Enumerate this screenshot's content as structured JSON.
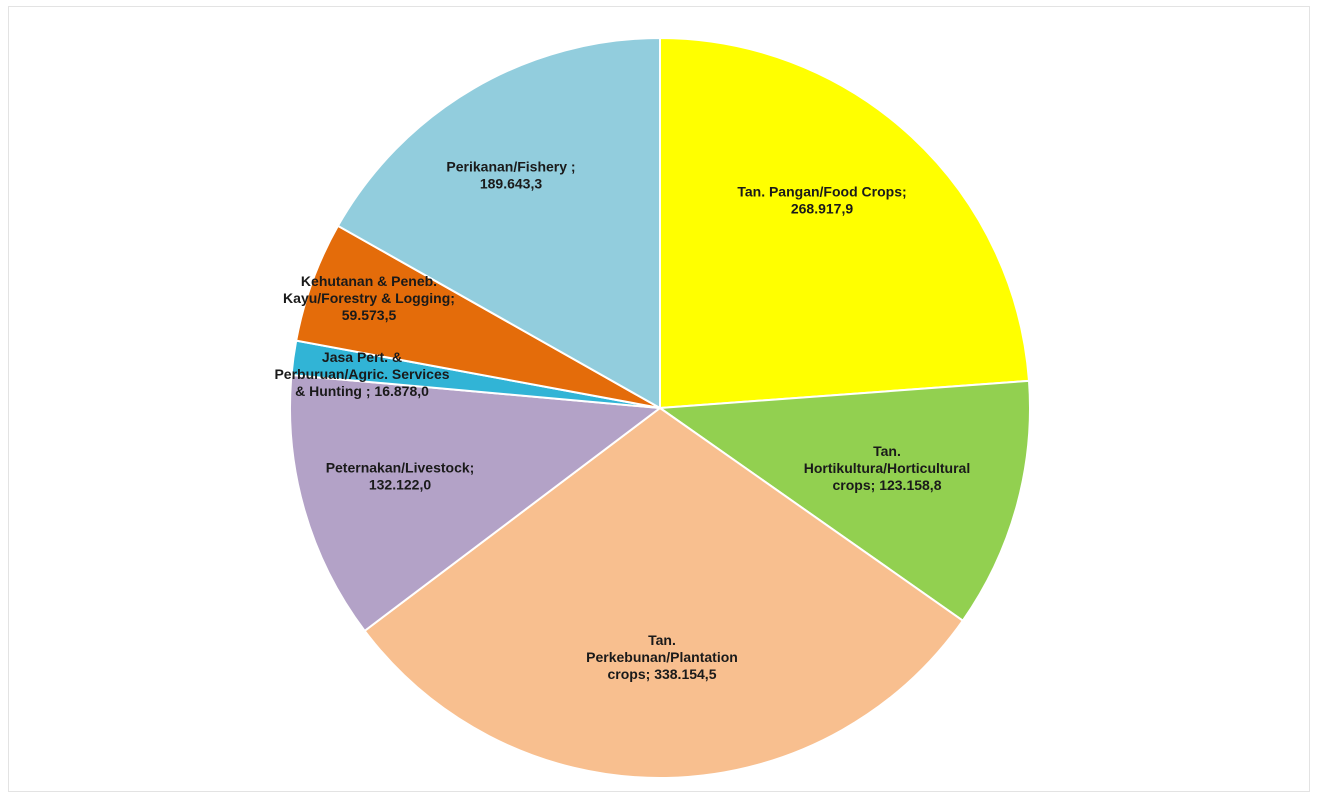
{
  "chart_data": {
    "type": "pie",
    "title": "",
    "start_angle_deg": 0,
    "direction": "clockwise",
    "legend": "none",
    "slices": [
      {
        "label_lines": [
          "Tan. Pangan/Food Crops;",
          "268.917,9"
        ],
        "value": 268917.9,
        "color": "#ffff00"
      },
      {
        "label_lines": [
          "Tan.",
          "Hortikultura/Horticultural",
          "crops; 123.158,8"
        ],
        "value": 123158.8,
        "color": "#92d050"
      },
      {
        "label_lines": [
          "Tan.",
          "Perkebunan/Plantation",
          "crops; 338.154,5"
        ],
        "value": 338154.5,
        "color": "#f8bf8f"
      },
      {
        "label_lines": [
          "Peternakan/Livestock;",
          "132.122,0"
        ],
        "value": 132122.0,
        "color": "#b3a2c7"
      },
      {
        "label_lines": [
          "Jasa Pert. &",
          "Perburuan/Agric. Services",
          "& Hunting ; 16.878,0"
        ],
        "value": 16878.0,
        "color": "#31b4d6"
      },
      {
        "label_lines": [
          "Kehutanan & Peneb.",
          "Kayu/Forestry & Logging;",
          "59.573,5"
        ],
        "value": 59573.5,
        "color": "#e46c0a"
      },
      {
        "label_lines": [
          "Perikanan/Fishery ;",
          "189.643,3"
        ],
        "value": 189643.3,
        "color": "#92cddd"
      }
    ]
  }
}
